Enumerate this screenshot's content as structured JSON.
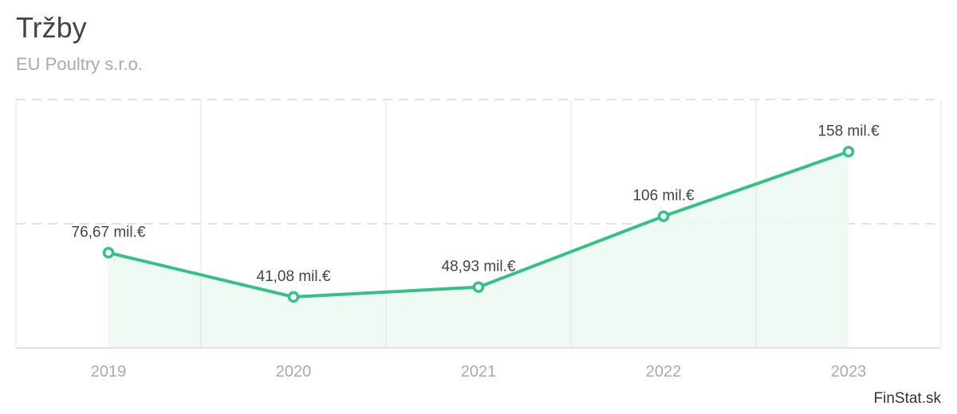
{
  "header": {
    "title": "Tržby",
    "subtitle": "EU Poultry s.r.o."
  },
  "footer": {
    "brand": "FinStat.sk"
  },
  "colors": {
    "line": "#34c185",
    "area": "#eef9f4",
    "grid": "#e2e2e2"
  },
  "chart_data": {
    "type": "area",
    "title": "Tržby",
    "subtitle": "EU Poultry s.r.o.",
    "categories": [
      "2019",
      "2020",
      "2021",
      "2022",
      "2023"
    ],
    "values": [
      76.67,
      41.08,
      48.93,
      106,
      158
    ],
    "data_labels": [
      "76,67 mil.€",
      "41,08 mil.€",
      "48,93 mil.€",
      "106 mil.€",
      "158 mil.€"
    ],
    "unit": "mil.€",
    "ylim": [
      0,
      200
    ],
    "gridlines_y": [
      100,
      200
    ],
    "grid": true,
    "legend": "none"
  }
}
